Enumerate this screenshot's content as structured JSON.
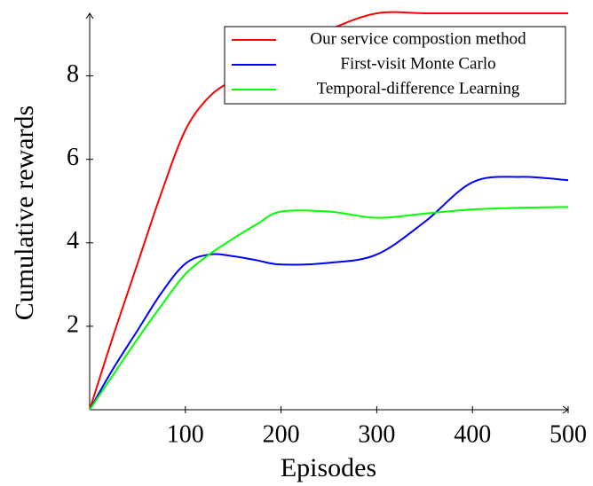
{
  "chart_data": {
    "type": "line",
    "xlabel": "Episodes",
    "ylabel": "Cumulative rewards",
    "x": [
      0,
      25,
      50,
      75,
      100,
      125,
      150,
      175,
      200,
      250,
      300,
      350,
      400,
      450,
      500
    ],
    "series": [
      {
        "name": "Our service compostion method",
        "color": "#ff0000",
        "values": [
          0,
          1.8,
          3.5,
          5.2,
          6.7,
          7.5,
          7.9,
          8.2,
          8.5,
          9.1,
          9.5,
          9.5,
          9.5,
          9.5,
          9.5
        ]
      },
      {
        "name": "First-visit Monte Carlo",
        "color": "#0000ff",
        "values": [
          0,
          1,
          1.9,
          2.8,
          3.5,
          3.72,
          3.68,
          3.58,
          3.48,
          3.52,
          3.72,
          4.5,
          5.45,
          5.58,
          5.5
        ]
      },
      {
        "name": "Temporal-difference Learning",
        "color": "#00ff00",
        "values": [
          0,
          0.85,
          1.7,
          2.5,
          3.25,
          3.72,
          4.1,
          4.45,
          4.75,
          4.75,
          4.6,
          4.7,
          4.8,
          4.84,
          4.86
        ]
      }
    ],
    "xlim": [
      0,
      500
    ],
    "xticks": [
      100,
      200,
      300,
      400,
      500
    ],
    "ylim": [
      0,
      9.5
    ],
    "yticks": [
      2,
      4,
      6,
      8
    ],
    "grid": false,
    "legend": "north east"
  }
}
